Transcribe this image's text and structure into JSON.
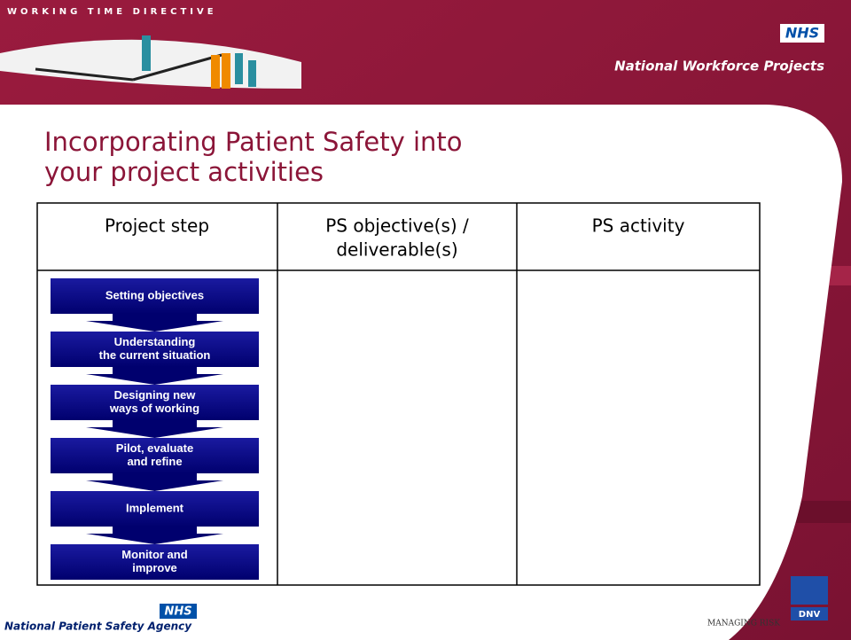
{
  "header": {
    "programme": "WORKING TIME DIRECTIVE",
    "nhs_logo": "NHS",
    "organisation": "National Workforce Projects"
  },
  "title": [
    "Incorporating Patient Safety into",
    "your project activities"
  ],
  "table": {
    "headers": [
      "Project step",
      [
        "PS objective(s) /",
        "deliverable(s)"
      ],
      "PS activity"
    ],
    "steps": [
      [
        "Setting objectives"
      ],
      [
        "Understanding",
        "the current situation"
      ],
      [
        "Designing new",
        "ways of working"
      ],
      [
        "Pilot, evaluate",
        "and refine"
      ],
      [
        "Implement"
      ],
      [
        "Monitor and",
        "improve"
      ]
    ]
  },
  "footer": {
    "nhs_logo": "NHS",
    "agency": "National Patient Safety Agency",
    "tagline": "MANAGING RISK",
    "dnv_logo": "DNV"
  }
}
